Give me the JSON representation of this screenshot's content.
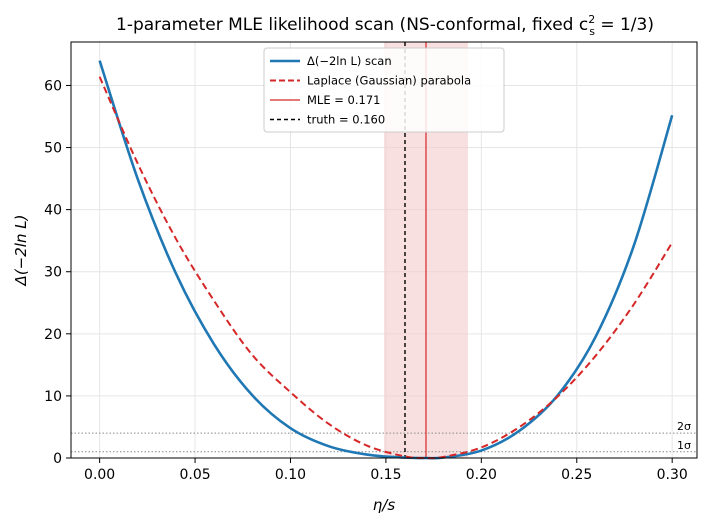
{
  "chart_data": {
    "type": "line",
    "title": "1-parameter MLE likelihood scan (NS-conformal, fixed c",
    "title_sup": "2",
    "title_sub": "s",
    "title_tail": " = 1/3)",
    "xlabel": "η/s",
    "ylabel": "Δ(−2ln L)",
    "xlim": [
      -0.015,
      0.313
    ],
    "ylim": [
      0,
      67
    ],
    "x_ticks": [
      0.0,
      0.05,
      0.1,
      0.15,
      0.2,
      0.25,
      0.3
    ],
    "x_tick_labels": [
      "0.00",
      "0.05",
      "0.10",
      "0.15",
      "0.20",
      "0.25",
      "0.30"
    ],
    "y_ticks": [
      0,
      10,
      20,
      30,
      40,
      50,
      60
    ],
    "y_tick_labels": [
      "0",
      "10",
      "20",
      "30",
      "40",
      "50",
      "60"
    ],
    "grid": true,
    "legend_position": "top-center",
    "band": {
      "x_from": 0.149,
      "x_to": 0.193,
      "color": "#f4cccc"
    },
    "series": [
      {
        "name": "Δ(−2ln L) scan",
        "style": "solid",
        "color": "#1f77b4",
        "x": [
          0.0,
          0.02,
          0.04,
          0.06,
          0.08,
          0.1,
          0.12,
          0.14,
          0.16,
          0.171,
          0.18,
          0.2,
          0.22,
          0.24,
          0.26,
          0.28,
          0.3
        ],
        "y": [
          64.0,
          44.9,
          29.7,
          18.3,
          10.1,
          4.8,
          1.9,
          0.55,
          0.06,
          0.0,
          0.07,
          1.2,
          4.4,
          10.1,
          19.6,
          34.3,
          55.2
        ]
      },
      {
        "name": "Laplace (Gaussian) parabola",
        "style": "dashed",
        "color": "#d62728",
        "x": [
          0.0,
          0.02,
          0.04,
          0.06,
          0.08,
          0.1,
          0.12,
          0.14,
          0.16,
          0.171,
          0.18,
          0.2,
          0.22,
          0.24,
          0.26,
          0.28,
          0.3
        ],
        "y": [
          61.4,
          47.4,
          35.3,
          25.3,
          16.6,
          10.6,
          5.5,
          2.0,
          0.25,
          0.0,
          0.17,
          1.7,
          5.0,
          9.9,
          16.5,
          24.8,
          34.7
        ]
      }
    ],
    "vlines": [
      {
        "name": "MLE = 0.171",
        "x": 0.171,
        "style": "solid",
        "color": "#d62728"
      },
      {
        "name": "truth = 0.160",
        "x": 0.16,
        "style": "dashed",
        "color": "#000000"
      }
    ],
    "hlines": [
      {
        "label": "1σ",
        "y": 1.0,
        "color": "#888888"
      },
      {
        "label": "2σ",
        "y": 4.0,
        "color": "#888888"
      }
    ]
  }
}
